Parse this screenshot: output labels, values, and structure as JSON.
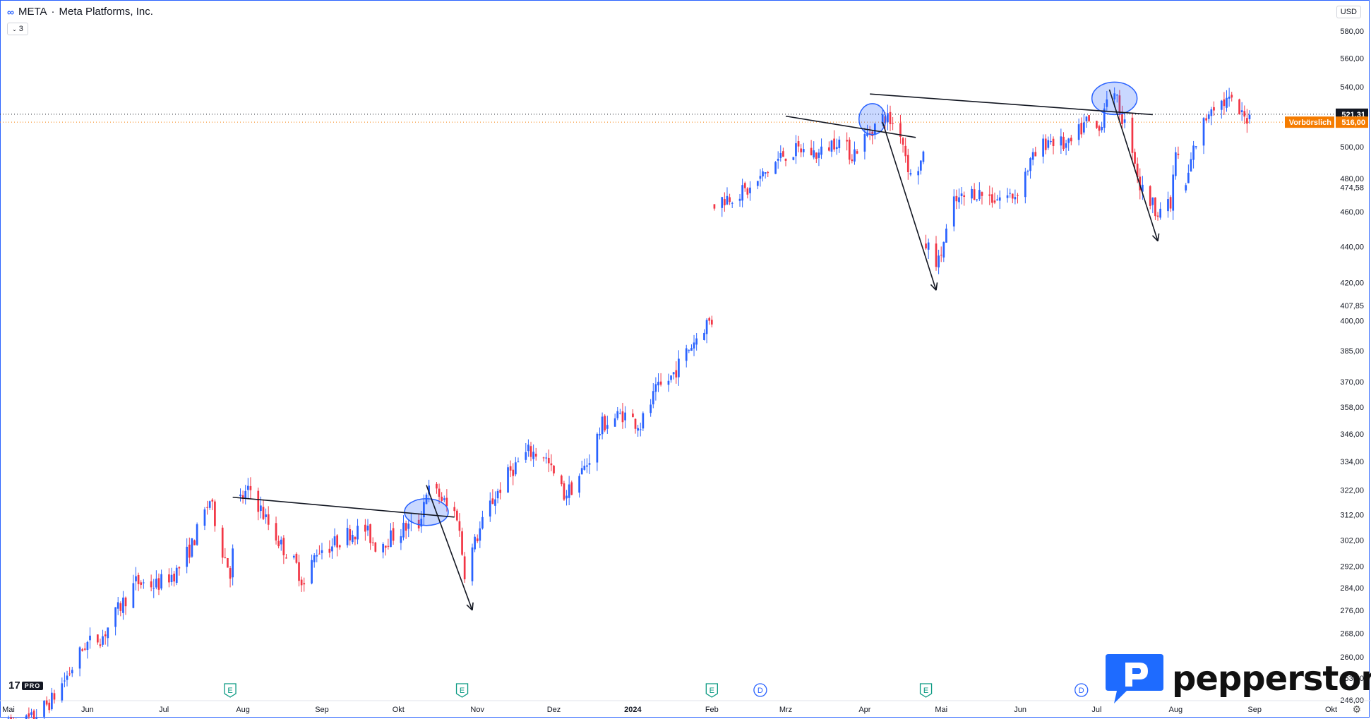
{
  "header": {
    "symbol": "META",
    "separator": "·",
    "company": "Meta Platforms, Inc.",
    "interval_badge": "3",
    "currency": "USD"
  },
  "branding": {
    "tv_logo": "17",
    "tv_badge": "PRO",
    "broker": "pepperstone"
  },
  "colors": {
    "up": "#2962ff",
    "down": "#f23645",
    "trendline": "#131722",
    "highlight_fill": "rgba(41,98,255,0.25)",
    "highlight_stroke": "#2962ff",
    "premarket": "#f57c00",
    "last_price": "#131722",
    "axis_text": "#131722",
    "event_earnings": "#089981",
    "event_dividend": "#2962ff"
  },
  "chart_data": {
    "type": "candlestick",
    "title": "META · Meta Platforms, Inc.",
    "x_start": "2023-05-01",
    "x_end": "2024-10-10",
    "y_scale": "log",
    "ylim": [
      246,
      590
    ],
    "y_ticks": [
      "246,00",
      "253,00",
      "260,00",
      "268,00",
      "276,00",
      "284,00",
      "292,00",
      "302,00",
      "312,00",
      "322,00",
      "334,00",
      "346,00",
      "358,00",
      "370,00",
      "385,00",
      "400,00",
      "407,85",
      "420,00",
      "440,00",
      "460,00",
      "474,58",
      "480,00",
      "500,00",
      "520,00",
      "540,00",
      "560,00",
      "580,00"
    ],
    "x_ticks": [
      {
        "label": "Mai",
        "date": "2023-05-01"
      },
      {
        "label": "Jun",
        "date": "2023-06-01"
      },
      {
        "label": "Jul",
        "date": "2023-07-01"
      },
      {
        "label": "Aug",
        "date": "2023-08-01"
      },
      {
        "label": "Sep",
        "date": "2023-09-01"
      },
      {
        "label": "Okt",
        "date": "2023-10-01"
      },
      {
        "label": "Nov",
        "date": "2023-11-01"
      },
      {
        "label": "Dez",
        "date": "2023-12-01"
      },
      {
        "label": "2024",
        "date": "2024-01-01",
        "bold": true
      },
      {
        "label": "Feb",
        "date": "2024-02-01"
      },
      {
        "label": "Mrz",
        "date": "2024-03-01"
      },
      {
        "label": "Apr",
        "date": "2024-04-01"
      },
      {
        "label": "Mai",
        "date": "2024-05-01"
      },
      {
        "label": "Jun",
        "date": "2024-06-01"
      },
      {
        "label": "Jul",
        "date": "2024-07-01"
      },
      {
        "label": "Aug",
        "date": "2024-08-01"
      },
      {
        "label": "Sep",
        "date": "2024-09-01"
      },
      {
        "label": "Okt",
        "date": "2024-10-01"
      }
    ],
    "anchors": [
      [
        "2023-05-01",
        238
      ],
      [
        "2023-05-10",
        240
      ],
      [
        "2023-05-18",
        246
      ],
      [
        "2023-05-25",
        255
      ],
      [
        "2023-05-31",
        264
      ],
      [
        "2023-06-07",
        267
      ],
      [
        "2023-06-13",
        276
      ],
      [
        "2023-06-20",
        286
      ],
      [
        "2023-06-28",
        285
      ],
      [
        "2023-07-06",
        290
      ],
      [
        "2023-07-12",
        300
      ],
      [
        "2023-07-19",
        318
      ],
      [
        "2023-07-24",
        298
      ],
      [
        "2023-07-27",
        290
      ],
      [
        "2023-07-31",
        318
      ],
      [
        "2023-08-04",
        322
      ],
      [
        "2023-08-10",
        310
      ],
      [
        "2023-08-16",
        300
      ],
      [
        "2023-08-22",
        292
      ],
      [
        "2023-08-25",
        285
      ],
      [
        "2023-08-30",
        298
      ],
      [
        "2023-09-05",
        300
      ],
      [
        "2023-09-12",
        305
      ],
      [
        "2023-09-18",
        306
      ],
      [
        "2023-09-22",
        300
      ],
      [
        "2023-09-28",
        303
      ],
      [
        "2023-10-04",
        307
      ],
      [
        "2023-10-09",
        308
      ],
      [
        "2023-10-12",
        322
      ],
      [
        "2023-10-17",
        320
      ],
      [
        "2023-10-20",
        315
      ],
      [
        "2023-10-24",
        312
      ],
      [
        "2023-10-27",
        290
      ],
      [
        "2023-10-31",
        301
      ],
      [
        "2023-11-06",
        316
      ],
      [
        "2023-11-14",
        330
      ],
      [
        "2023-11-21",
        338
      ],
      [
        "2023-11-27",
        337
      ],
      [
        "2023-11-30",
        330
      ],
      [
        "2023-12-05",
        320
      ],
      [
        "2023-12-08",
        323
      ],
      [
        "2023-12-14",
        333
      ],
      [
        "2023-12-20",
        350
      ],
      [
        "2023-12-28",
        355
      ],
      [
        "2024-01-04",
        350
      ],
      [
        "2024-01-10",
        365
      ],
      [
        "2024-01-16",
        372
      ],
      [
        "2024-01-23",
        386
      ],
      [
        "2024-01-30",
        399
      ],
      [
        "2024-02-01",
        400
      ],
      [
        "2024-02-02",
        465
      ],
      [
        "2024-02-09",
        470
      ],
      [
        "2024-02-16",
        473
      ],
      [
        "2024-02-23",
        485
      ],
      [
        "2024-02-29",
        495
      ],
      [
        "2024-03-07",
        498
      ],
      [
        "2024-03-14",
        495
      ],
      [
        "2024-03-21",
        505
      ],
      [
        "2024-03-27",
        495
      ],
      [
        "2024-04-04",
        512
      ],
      [
        "2024-04-09",
        520
      ],
      [
        "2024-04-15",
        510
      ],
      [
        "2024-04-19",
        481
      ],
      [
        "2024-04-24",
        492
      ],
      [
        "2024-04-25",
        441
      ],
      [
        "2024-04-30",
        431
      ],
      [
        "2024-05-06",
        465
      ],
      [
        "2024-05-14",
        472
      ],
      [
        "2024-05-22",
        468
      ],
      [
        "2024-05-30",
        470
      ],
      [
        "2024-06-05",
        490
      ],
      [
        "2024-06-12",
        505
      ],
      [
        "2024-06-20",
        500
      ],
      [
        "2024-06-27",
        516
      ],
      [
        "2024-07-02",
        510
      ],
      [
        "2024-07-05",
        535
      ],
      [
        "2024-07-09",
        529
      ],
      [
        "2024-07-15",
        500
      ],
      [
        "2024-07-18",
        475
      ],
      [
        "2024-07-24",
        462
      ],
      [
        "2024-07-30",
        463
      ],
      [
        "2024-08-01",
        497
      ],
      [
        "2024-08-05",
        475
      ],
      [
        "2024-08-08",
        498
      ],
      [
        "2024-08-15",
        528
      ],
      [
        "2024-08-22",
        530
      ],
      [
        "2024-08-28",
        518
      ],
      [
        "2024-08-30",
        521
      ]
    ],
    "lines": [
      {
        "name": "last",
        "value": 521.31,
        "label": "521,31"
      },
      {
        "name": "premarket",
        "value": 516.0,
        "label": "516,00",
        "tag": "Vorbörslich"
      }
    ],
    "annotations": {
      "necklines": [
        [
          [
            "2023-07-28",
            319
          ],
          [
            "2023-10-23",
            311
          ]
        ],
        [
          [
            "2024-03-01",
            520
          ],
          [
            "2024-04-21",
            506
          ]
        ],
        [
          [
            "2024-04-03",
            535
          ],
          [
            "2024-07-23",
            521
          ]
        ]
      ],
      "arrows": [
        [
          [
            "2023-10-12",
            324
          ],
          [
            "2023-10-30",
            276
          ]
        ],
        [
          [
            "2024-04-08",
            516
          ],
          [
            "2024-04-29",
            416
          ]
        ],
        [
          [
            "2024-07-06",
            538
          ],
          [
            "2024-07-25",
            443
          ]
        ]
      ],
      "ellipses": [
        {
          "center": [
            "2023-10-12",
            313
          ],
          "rx": 31,
          "ry": 19
        },
        {
          "center": [
            "2024-04-04",
            518
          ],
          "rx": 19,
          "ry": 22
        },
        {
          "center": [
            "2024-07-08",
            532
          ],
          "rx": 32,
          "ry": 23
        }
      ]
    },
    "events": [
      {
        "type": "E",
        "date": "2023-07-27"
      },
      {
        "type": "E",
        "date": "2023-10-26"
      },
      {
        "type": "E",
        "date": "2024-02-01"
      },
      {
        "type": "D",
        "date": "2024-02-20"
      },
      {
        "type": "E",
        "date": "2024-04-25"
      },
      {
        "type": "D",
        "date": "2024-06-25"
      }
    ]
  }
}
